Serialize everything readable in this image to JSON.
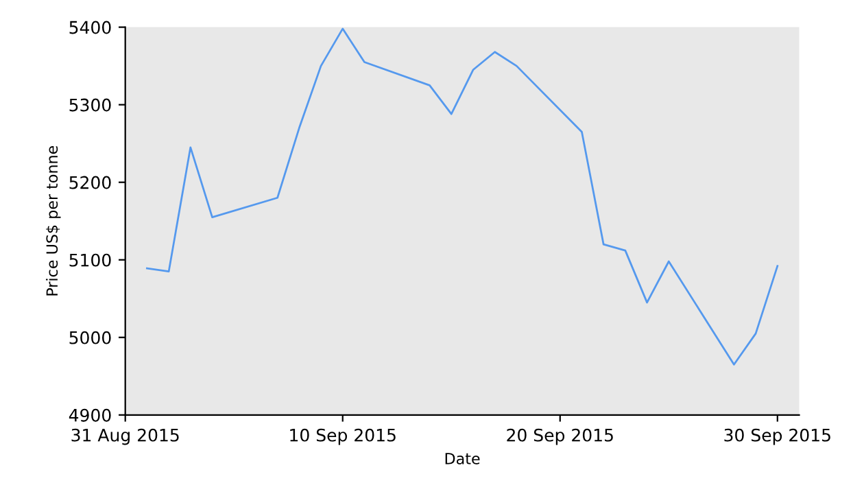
{
  "chart_data": {
    "type": "line",
    "xlabel": "Date",
    "ylabel": "Price US$ per tonne",
    "x": [
      "2015-09-01",
      "2015-09-02",
      "2015-09-03",
      "2015-09-04",
      "2015-09-07",
      "2015-09-08",
      "2015-09-09",
      "2015-09-10",
      "2015-09-11",
      "2015-09-14",
      "2015-09-15",
      "2015-09-16",
      "2015-09-17",
      "2015-09-18",
      "2015-09-21",
      "2015-09-22",
      "2015-09-23",
      "2015-09-24",
      "2015-09-25",
      "2015-09-28",
      "2015-09-29",
      "2015-09-30"
    ],
    "series": [
      {
        "color": "#5599ee",
        "values": [
          5089,
          5085,
          5245,
          5155,
          5180,
          5270,
          5350,
          5398,
          5355,
          5325,
          5288,
          5345,
          5368,
          5350,
          5265,
          5120,
          5112,
          5045,
          5098,
          4965,
          5005,
          5092
        ]
      }
    ],
    "xlim": [
      "2015-08-31",
      "2015-10-01"
    ],
    "xticks": [
      {
        "value": "2015-08-31",
        "label": "31 Aug 2015"
      },
      {
        "value": "2015-09-10",
        "label": "10 Sep 2015"
      },
      {
        "value": "2015-09-20",
        "label": "20 Sep 2015"
      },
      {
        "value": "2015-09-30",
        "label": "30 Sep 2015"
      }
    ],
    "ylim": [
      4900,
      5400
    ],
    "yticks": [
      4900,
      5000,
      5100,
      5200,
      5300,
      5400
    ],
    "grid": false,
    "legend": false,
    "marker": "none",
    "line_style": "solid"
  }
}
